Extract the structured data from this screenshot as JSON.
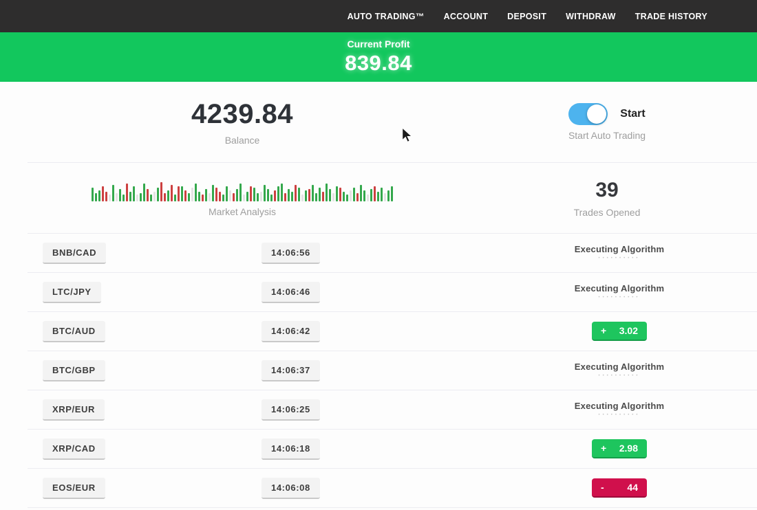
{
  "nav": {
    "items": [
      {
        "label": "AUTO TRADING™"
      },
      {
        "label": "ACCOUNT"
      },
      {
        "label": "DEPOSIT"
      },
      {
        "label": "WITHDRAW"
      },
      {
        "label": "TRADE HISTORY"
      }
    ]
  },
  "profit_banner": {
    "label": "Current Profit",
    "value": "839.84"
  },
  "summary": {
    "balance": {
      "value": "4239.84",
      "label": "Balance"
    },
    "auto_trading": {
      "toggle_label": "Start",
      "caption": "Start Auto Trading",
      "toggle_on": true
    },
    "trades_opened": {
      "value": "39",
      "label": "Trades Opened"
    }
  },
  "chart_data": {
    "type": "bar",
    "title": "Market Analysis",
    "ylabel": "",
    "xlabel": "",
    "legend": false,
    "grid": false,
    "color_map": {
      "g": "#34a84c",
      "r": "#cc4040",
      "n": "#e3e3e3"
    },
    "bars": [
      "g20",
      "g12",
      "g16",
      "r22",
      "r14",
      "n10",
      "g24",
      "n12",
      "g18",
      "g10",
      "r26",
      "g14",
      "g22",
      "n10",
      "g12",
      "g26",
      "r18",
      "g10",
      "n14",
      "g20",
      "r28",
      "r12",
      "g16",
      "r24",
      "g10",
      "r22",
      "g22",
      "r16",
      "g12",
      "n20",
      "g26",
      "g14",
      "r10",
      "g18",
      "n12",
      "g24",
      "r20",
      "r14",
      "g10",
      "g22",
      "n16",
      "r12",
      "g18",
      "g26",
      "n10",
      "g14",
      "r22",
      "g20",
      "g12",
      "n14",
      "g24",
      "g18",
      "g10",
      "r16",
      "g22",
      "g26",
      "r12",
      "g18",
      "g14",
      "r24",
      "g20",
      "n10",
      "g16",
      "r18",
      "g24",
      "g12",
      "g20",
      "r14",
      "g26",
      "g18",
      "n12",
      "g22",
      "r20",
      "g14",
      "g10",
      "n16",
      "g20",
      "r12",
      "g24",
      "g16",
      "n10",
      "g18",
      "r22",
      "g14",
      "g20",
      "n12",
      "g16",
      "g22"
    ]
  },
  "ui": {
    "executing_label": "Executing Algorithm",
    "progress_dots": "••••••••••"
  },
  "trades": [
    {
      "pair": "BNB/CAD",
      "time": "14:06:56",
      "status": "executing"
    },
    {
      "pair": "LTC/JPY",
      "time": "14:06:46",
      "status": "executing"
    },
    {
      "pair": "BTC/AUD",
      "time": "14:06:42",
      "status": "result",
      "result_type": "profit",
      "sign": "+",
      "value": "3.02"
    },
    {
      "pair": "BTC/GBP",
      "time": "14:06:37",
      "status": "executing"
    },
    {
      "pair": "XRP/EUR",
      "time": "14:06:25",
      "status": "executing"
    },
    {
      "pair": "XRP/CAD",
      "time": "14:06:18",
      "status": "result",
      "result_type": "profit",
      "sign": "+",
      "value": "2.98"
    },
    {
      "pair": "EOS/EUR",
      "time": "14:06:08",
      "status": "result",
      "result_type": "loss",
      "sign": "-",
      "value": "44"
    }
  ],
  "colors": {
    "nav_background": "#2e2d2d",
    "banner_green": "#12c75d",
    "profit_badge_green": "#1ec55e",
    "loss_badge_red": "#d0104c",
    "toggle_blue": "#4db3ee",
    "chip_background": "#f3f3f3"
  }
}
